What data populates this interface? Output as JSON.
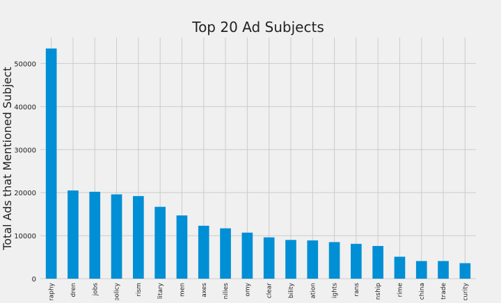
{
  "chart_data": {
    "type": "bar",
    "title": "Top 20 Ad Subjects",
    "xlabel": "",
    "ylabel": "Total Ads that Mentioned Subject",
    "ylim": [
      0,
      55400
    ],
    "yticks": [
      0,
      10000,
      20000,
      30000,
      40000,
      50000
    ],
    "grid": true,
    "legend": "none",
    "bar_color": "#008fd5",
    "background_color": "#f0f0f0",
    "grid_color": "#cbcbcb",
    "categories": [
      "raphy",
      "dren",
      "jobs",
      "policy",
      "rism",
      "litary",
      "men",
      "axes",
      "nilies",
      "omy",
      "clear",
      "bility",
      "ation",
      "ights",
      "rans",
      "nship",
      "rime",
      "china",
      "trade",
      "curity"
    ],
    "values": [
      53500,
      20500,
      20200,
      19600,
      19200,
      16700,
      14700,
      12300,
      11700,
      10700,
      9600,
      9000,
      8900,
      8500,
      8100,
      7600,
      5100,
      4100,
      4100,
      3600
    ]
  }
}
